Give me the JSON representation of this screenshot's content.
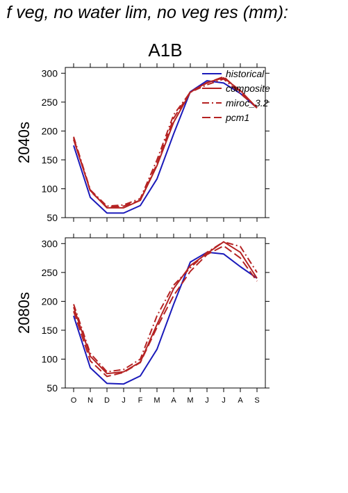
{
  "figure": {
    "suptitle": "f veg, no water lim, no veg res (mm):",
    "scenario": "A1B"
  },
  "chart_data": [
    {
      "type": "line",
      "panel_label": "2040s",
      "categories": [
        "O",
        "N",
        "D",
        "J",
        "F",
        "M",
        "A",
        "M",
        "J",
        "J",
        "A",
        "S"
      ],
      "ylim": [
        50,
        310
      ],
      "yticks": [
        50,
        100,
        150,
        200,
        250,
        300
      ],
      "show_xtick_labels": false,
      "legend_position": "top-right",
      "series": [
        {
          "name": "historical",
          "color": "#1a1aba",
          "dash": "solid",
          "values": [
            175,
            85,
            58,
            58,
            71,
            117,
            195,
            268,
            287,
            283,
            265,
            240
          ]
        },
        {
          "name": "composite",
          "color": "#b52222",
          "dash": "solid",
          "values": [
            185,
            97,
            67,
            67,
            80,
            140,
            215,
            267,
            284,
            292,
            270,
            240
          ]
        },
        {
          "name": "miroc_3.2",
          "color": "#b52222",
          "dash": "dashdot",
          "values": [
            190,
            98,
            70,
            72,
            83,
            150,
            228,
            267,
            280,
            290,
            265,
            240
          ]
        },
        {
          "name": "pcm1",
          "color": "#b52222",
          "dash": "dashed",
          "values": [
            188,
            96,
            68,
            70,
            80,
            143,
            222,
            268,
            283,
            294,
            268,
            240
          ]
        }
      ]
    },
    {
      "type": "line",
      "panel_label": "2080s",
      "categories": [
        "O",
        "N",
        "D",
        "J",
        "F",
        "M",
        "A",
        "M",
        "J",
        "J",
        "A",
        "S"
      ],
      "ylim": [
        50,
        310
      ],
      "yticks": [
        50,
        100,
        150,
        200,
        250,
        300
      ],
      "show_xtick_labels": true,
      "legend_position": "none",
      "series": [
        {
          "name": "historical",
          "color": "#1a1aba",
          "dash": "solid",
          "values": [
            175,
            85,
            58,
            57,
            71,
            117,
            195,
            268,
            285,
            282,
            260,
            240
          ]
        },
        {
          "name": "composite",
          "color": "#b52222",
          "dash": "solid",
          "values": [
            190,
            105,
            75,
            78,
            95,
            160,
            222,
            262,
            283,
            303,
            285,
            240
          ]
        },
        {
          "name": "miroc_3.2",
          "color": "#b52222",
          "dash": "dashdot",
          "values": [
            195,
            110,
            78,
            82,
            100,
            175,
            228,
            258,
            285,
            303,
            295,
            250
          ]
        },
        {
          "name": "pcm1",
          "color": "#b52222",
          "dash": "dashed",
          "values": [
            183,
            97,
            70,
            77,
            94,
            155,
            210,
            252,
            281,
            296,
            275,
            235
          ]
        }
      ]
    }
  ]
}
